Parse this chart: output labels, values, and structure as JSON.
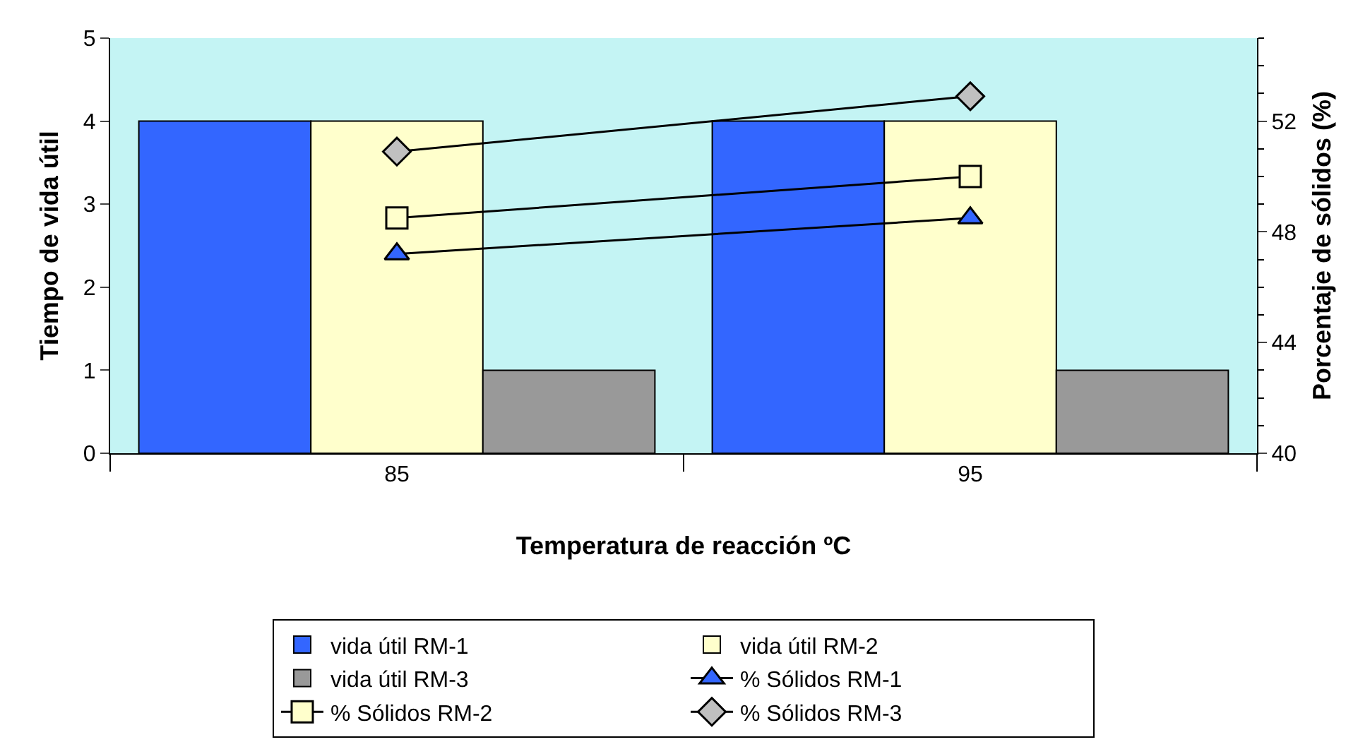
{
  "chart_data": {
    "type": "bar",
    "categories": [
      "85",
      "95"
    ],
    "xlabel": "Temperatura de reacción ºC",
    "ylabel": "Tiempo de vida útil",
    "y2label": "Porcentaje de sólidos (%)",
    "ylim": [
      0,
      5
    ],
    "yticks": [
      0,
      1,
      2,
      3,
      4,
      5
    ],
    "y2lim": [
      40,
      55
    ],
    "y2ticks": [
      40,
      44,
      48,
      52
    ],
    "grid": false,
    "legend": "bottom",
    "series": [
      {
        "name": "vida útil RM-1",
        "color": "#3366ff",
        "values": [
          4,
          4
        ]
      },
      {
        "name": "vida útil RM-2",
        "color": "#ffffcc",
        "values": [
          4,
          4
        ]
      },
      {
        "name": "vida útil RM-3",
        "color": "#999999",
        "values": [
          1,
          1
        ]
      },
      {
        "name": "% Sólidos RM-1",
        "type": "line",
        "axis": "y2",
        "marker": "triangle",
        "color": "#3366ff",
        "values": [
          47.2,
          48.5
        ]
      },
      {
        "name": "% Sólidos RM-2",
        "type": "line",
        "axis": "y2",
        "marker": "square",
        "color": "#ffffcc",
        "values": [
          48.5,
          50.0
        ]
      },
      {
        "name": "% Sólidos RM-3",
        "type": "line",
        "axis": "y2",
        "marker": "diamond",
        "color": "#c0c0c0",
        "values": [
          50.9,
          52.9
        ]
      }
    ]
  }
}
